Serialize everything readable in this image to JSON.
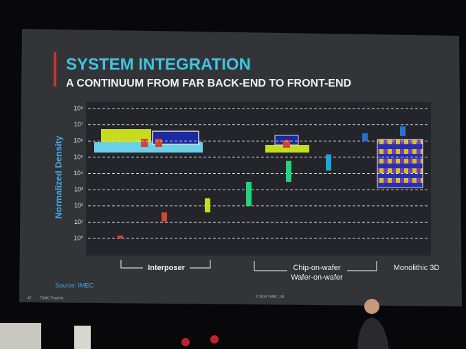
{
  "chart_data": {
    "type": "range",
    "title": "SYSTEM INTEGRATION",
    "subtitle": "A CONTINUUM FROM FAR BACK-END TO FRONT-END",
    "y_label": "Normalized Density",
    "log_y": true,
    "grid": true,
    "ylim": [
      1,
      100000000
    ],
    "yticks": [
      {
        "value": 1,
        "label": "10⁰"
      },
      {
        "value": 10,
        "label": "10¹"
      },
      {
        "value": 100,
        "label": "10²"
      },
      {
        "value": 1000,
        "label": "10³"
      },
      {
        "value": 10000,
        "label": "10⁴"
      },
      {
        "value": 100000,
        "label": "10⁵"
      },
      {
        "value": 1000000,
        "label": "10⁶"
      },
      {
        "value": 10000000,
        "label": "10⁷"
      },
      {
        "value": 100000000,
        "label": "10⁸"
      }
    ],
    "ranges": [
      {
        "low": 1,
        "high": 1.5,
        "color": "#d2462e"
      },
      {
        "low": 11,
        "high": 40,
        "color": "#d2462e"
      },
      {
        "low": 40,
        "high": 300,
        "color": "#c8dc1e"
      },
      {
        "low": 100,
        "high": 3000,
        "color": "#1fd47a"
      },
      {
        "low": 3000,
        "high": 60000,
        "color": "#1fd47a"
      },
      {
        "low": 15000,
        "high": 150000,
        "color": "#1aa8d8"
      },
      {
        "low": 1000000,
        "high": 3000000,
        "color": "#2a6fd0"
      },
      {
        "low": 2000000,
        "high": 8000000,
        "color": "#2a6fd0"
      }
    ],
    "groups": [
      "Interposer",
      "Chip-on-wafer",
      "Wafer-on-wafer",
      "Monolithic 3D"
    ],
    "source": "Source: IMEC",
    "footer": [
      "47",
      "TSMC Property",
      "© 2019 TSMC, Ltd"
    ]
  }
}
